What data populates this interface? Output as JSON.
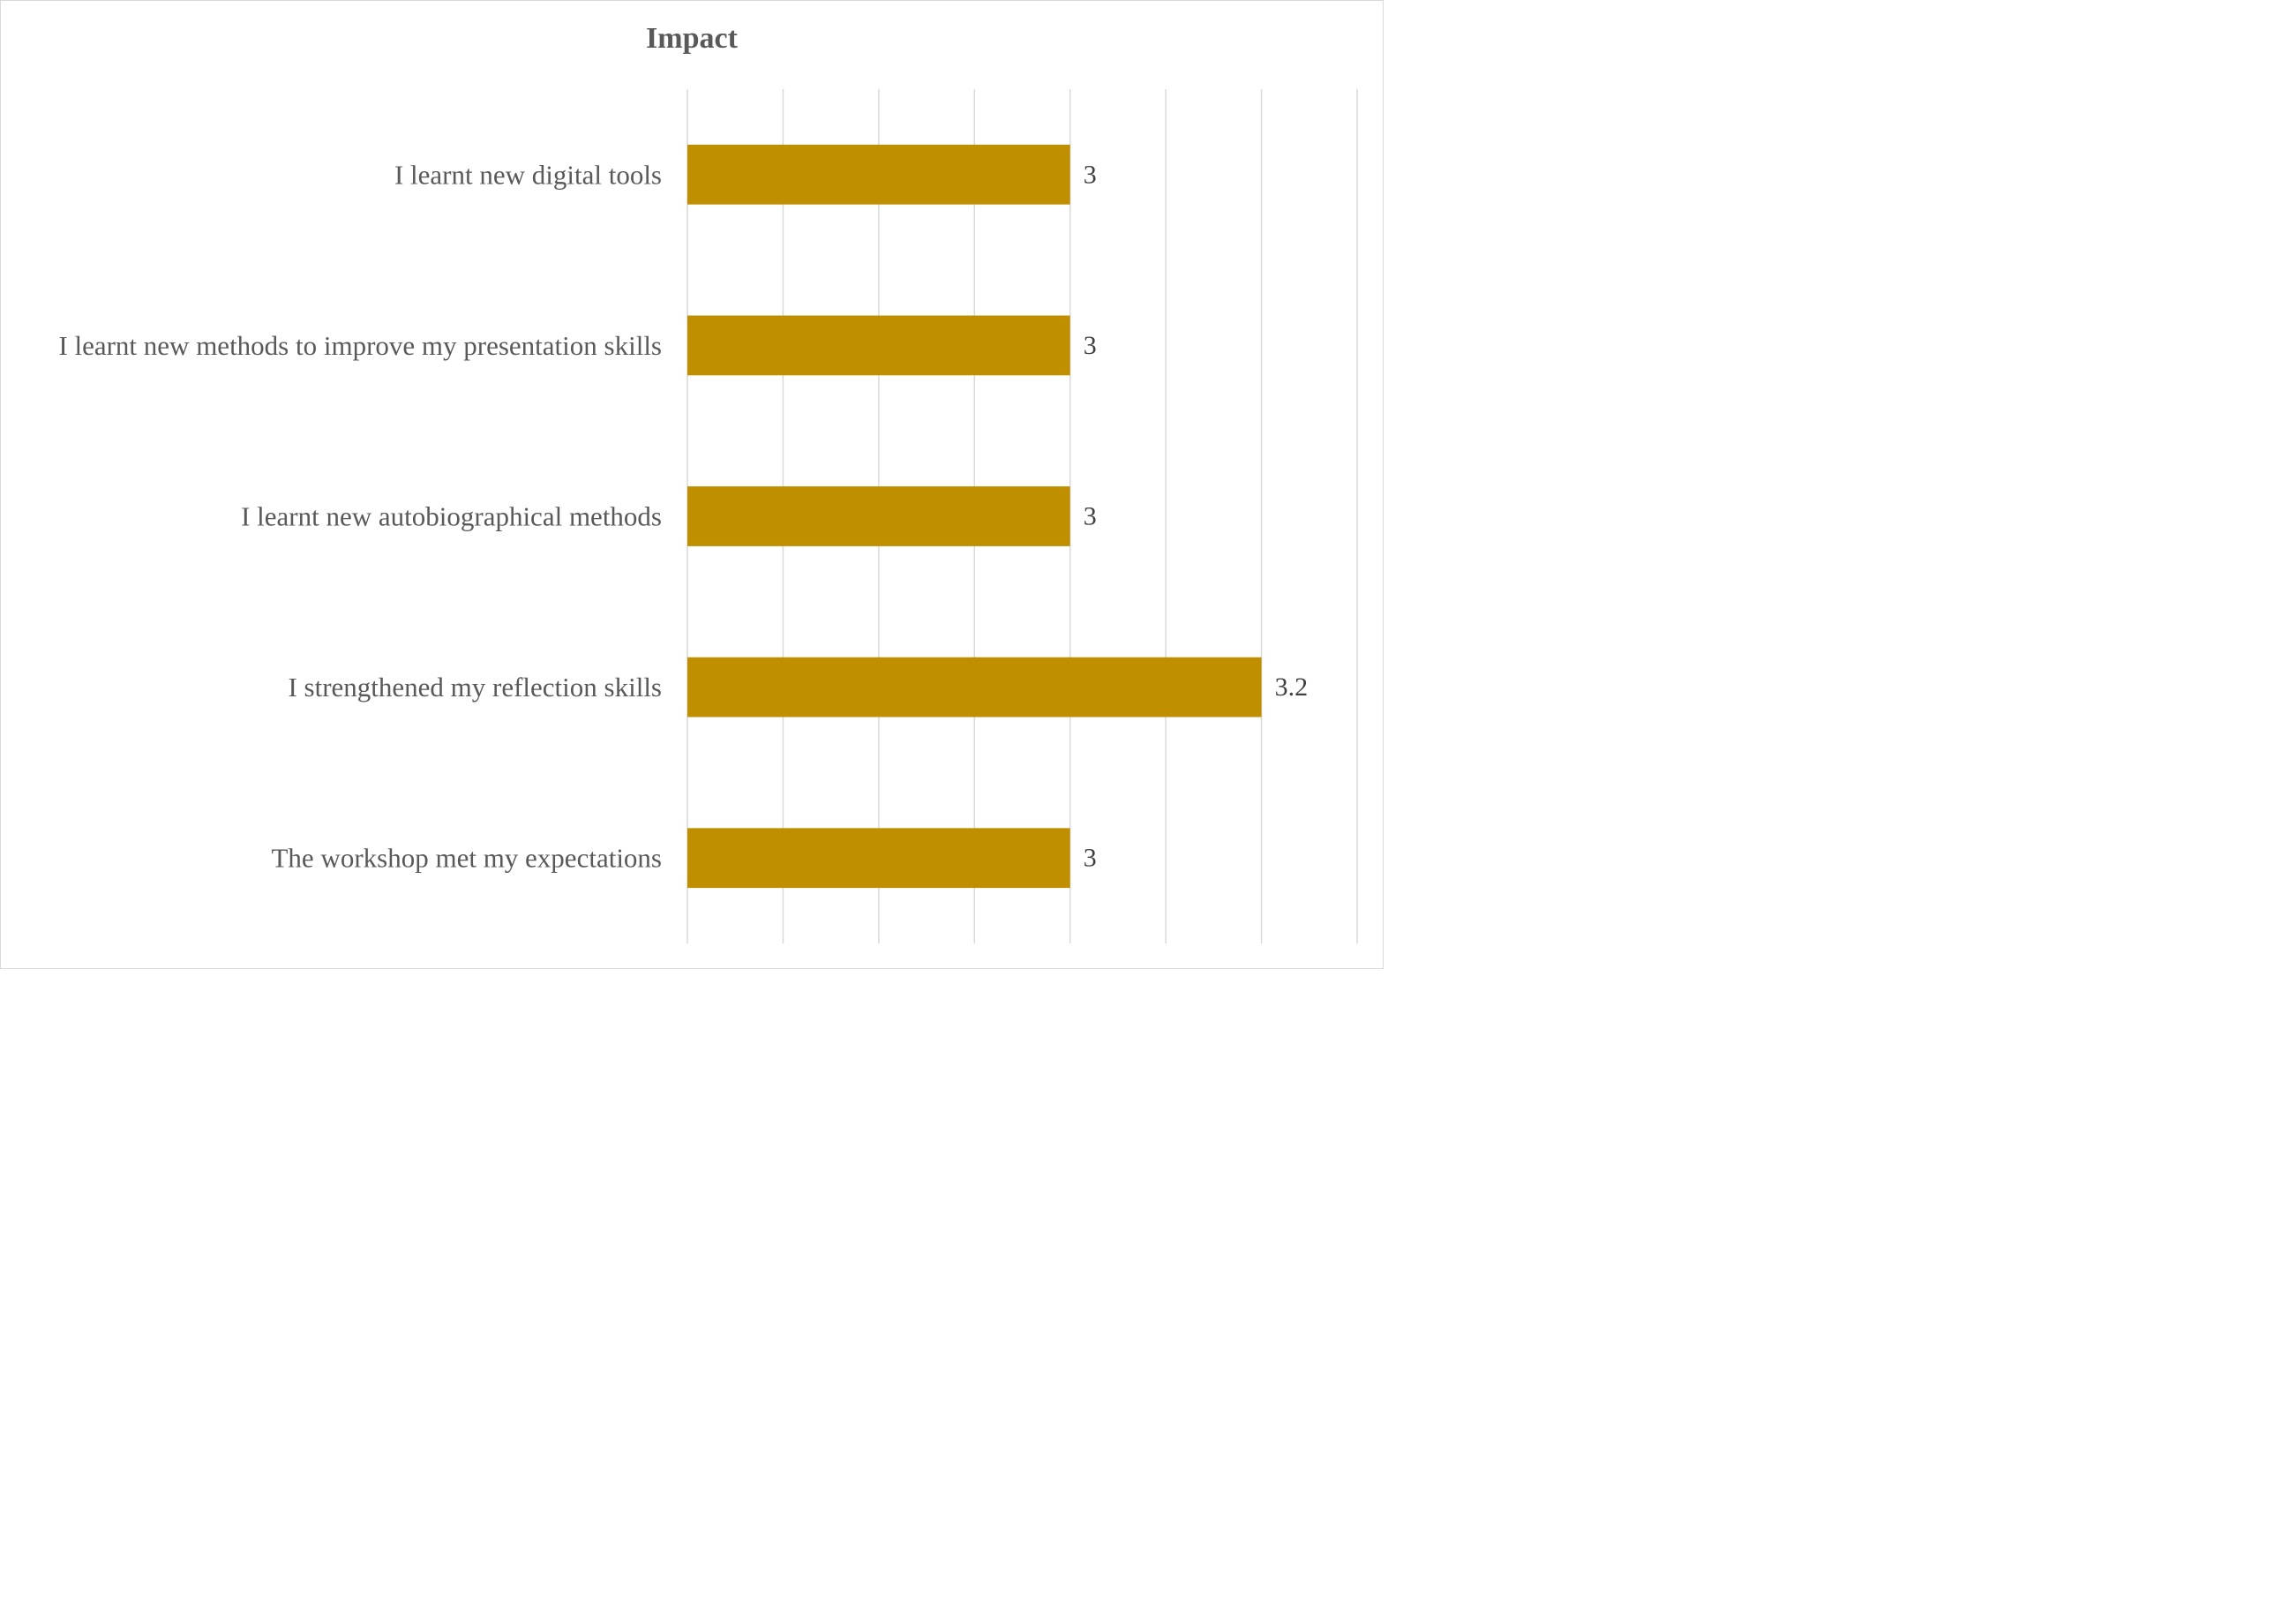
{
  "chart_data": {
    "type": "bar",
    "orientation": "horizontal",
    "title": "Impact",
    "xlabel": "",
    "ylabel": "",
    "categories": [
      "I learnt new digital tools",
      "I learnt new methods to improve my presentation skills",
      "I learnt new autobiographical methods",
      "I strengthened my reflection skills",
      "The workshop met my expectations"
    ],
    "values": [
      3,
      3,
      3,
      3.2,
      3
    ],
    "data_labels": [
      "3",
      "3",
      "3",
      "3.2",
      "3"
    ],
    "xlim": [
      2.6,
      3.3
    ],
    "x_gridline_step": 0.1,
    "x_tick_labels_visible": false,
    "grid": true,
    "legend": "none",
    "bar_color": "#BF8F00"
  }
}
